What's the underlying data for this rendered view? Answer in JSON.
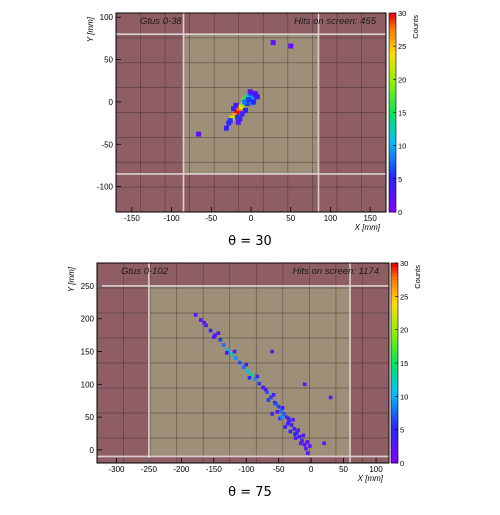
{
  "chart_data": [
    {
      "type": "heatmap",
      "title_left": "Gtus 0-38",
      "title_right": "Hits on screen: 455",
      "xlabel": "X [mm]",
      "ylabel": "Y [mm]",
      "zlabel": "Counts",
      "caption": "θ = 30",
      "xlim": [
        -170,
        170
      ],
      "ylim": [
        -130,
        105
      ],
      "zlim": [
        0,
        30
      ],
      "xticks": [
        -150,
        -100,
        -50,
        0,
        50,
        100,
        150
      ],
      "yticks": [
        -100,
        -50,
        0,
        50,
        100
      ],
      "zticks": [
        0,
        5,
        10,
        15,
        20,
        25,
        30
      ],
      "active_region": {
        "x": [
          -85,
          85
        ],
        "y": [
          -85,
          80
        ]
      },
      "grid": true,
      "points": [
        [
          -18,
          -12,
          30
        ],
        [
          -15,
          -8,
          28
        ],
        [
          -21,
          -16,
          26
        ],
        [
          -12,
          -6,
          24
        ],
        [
          -24,
          -19,
          22
        ],
        [
          -10,
          -3,
          20
        ],
        [
          -9,
          2,
          18
        ],
        [
          -6,
          4,
          16
        ],
        [
          -4,
          6,
          14
        ],
        [
          -2,
          8,
          12
        ],
        [
          1,
          6,
          10
        ],
        [
          4,
          4,
          9
        ],
        [
          2,
          -1,
          8
        ],
        [
          0,
          10,
          7
        ],
        [
          -26,
          -22,
          6
        ],
        [
          -28,
          -25,
          5
        ],
        [
          -31,
          -31,
          4
        ],
        [
          -14,
          -20,
          4
        ],
        [
          -7,
          -10,
          5
        ],
        [
          3,
          0,
          5
        ],
        [
          6,
          8,
          4
        ],
        [
          -1,
          12,
          3
        ],
        [
          8,
          6,
          3
        ],
        [
          -19,
          -4,
          3
        ],
        [
          -16,
          -24,
          3
        ],
        [
          -11,
          -14,
          4
        ],
        [
          -5,
          -2,
          6
        ],
        [
          -66,
          -38,
          2
        ],
        [
          28,
          70,
          2
        ],
        [
          50,
          66,
          2
        ],
        [
          -22,
          -8,
          4
        ],
        [
          -17,
          -18,
          6
        ],
        [
          -8,
          0,
          8
        ],
        [
          -3,
          3,
          6
        ],
        [
          5,
          10,
          3
        ]
      ]
    },
    {
      "type": "heatmap",
      "title_left": "Gtus 0-102",
      "title_right": "Hits on screen: 1174",
      "xlabel": "X [mm]",
      "ylabel": "Y [mm]",
      "zlabel": "Counts",
      "caption": "θ = 75",
      "xlim": [
        -330,
        120
      ],
      "ylim": [
        -20,
        285
      ],
      "zlim": [
        0,
        30
      ],
      "xticks": [
        -300,
        -250,
        -200,
        -150,
        -100,
        -50,
        0,
        50,
        100
      ],
      "yticks": [
        0,
        50,
        100,
        150,
        200,
        250
      ],
      "zticks": [
        0,
        5,
        10,
        15,
        20,
        25,
        30
      ],
      "active_region": {
        "x": [
          -250,
          60
        ],
        "y": [
          -10,
          250
        ]
      },
      "grid": true,
      "points": [
        [
          -170,
          198,
          3
        ],
        [
          -162,
          190,
          4
        ],
        [
          -155,
          182,
          5
        ],
        [
          -148,
          175,
          4
        ],
        [
          -140,
          168,
          6
        ],
        [
          -135,
          160,
          8
        ],
        [
          -128,
          152,
          10
        ],
        [
          -122,
          146,
          12
        ],
        [
          -116,
          140,
          9
        ],
        [
          -110,
          133,
          7
        ],
        [
          -104,
          126,
          8
        ],
        [
          -98,
          120,
          11
        ],
        [
          -92,
          114,
          14
        ],
        [
          -86,
          108,
          9
        ],
        [
          -80,
          101,
          6
        ],
        [
          -74,
          95,
          5
        ],
        [
          -68,
          88,
          7
        ],
        [
          -62,
          80,
          6
        ],
        [
          -56,
          72,
          5
        ],
        [
          -50,
          66,
          6
        ],
        [
          -46,
          60,
          8
        ],
        [
          -42,
          55,
          7
        ],
        [
          -38,
          50,
          6
        ],
        [
          -34,
          44,
          5
        ],
        [
          -30,
          38,
          4
        ],
        [
          -26,
          32,
          5
        ],
        [
          -22,
          26,
          4
        ],
        [
          -18,
          20,
          5
        ],
        [
          -14,
          14,
          4
        ],
        [
          -10,
          8,
          3
        ],
        [
          -165,
          194,
          2
        ],
        [
          -150,
          172,
          3
        ],
        [
          -143,
          178,
          2
        ],
        [
          -130,
          148,
          4
        ],
        [
          -118,
          150,
          3
        ],
        [
          -100,
          130,
          4
        ],
        [
          -95,
          110,
          5
        ],
        [
          -83,
          112,
          4
        ],
        [
          -70,
          92,
          3
        ],
        [
          -58,
          84,
          4
        ],
        [
          -52,
          58,
          3
        ],
        [
          -44,
          64,
          4
        ],
        [
          -36,
          40,
          3
        ],
        [
          -28,
          46,
          2
        ],
        [
          -20,
          30,
          3
        ],
        [
          -12,
          22,
          2
        ],
        [
          -6,
          12,
          2
        ],
        [
          -2,
          6,
          2
        ],
        [
          -60,
          55,
          5
        ],
        [
          -48,
          48,
          6
        ],
        [
          -40,
          35,
          4
        ],
        [
          -32,
          28,
          4
        ],
        [
          -24,
          18,
          3
        ],
        [
          -16,
          10,
          3
        ],
        [
          -178,
          206,
          2
        ],
        [
          -60,
          150,
          2
        ],
        [
          -10,
          100,
          2
        ],
        [
          30,
          80,
          2
        ],
        [
          -5,
          -5,
          2
        ],
        [
          20,
          10,
          3
        ],
        [
          -66,
          76,
          6
        ],
        [
          -54,
          70,
          7
        ],
        [
          -45,
          50,
          9
        ],
        [
          -35,
          48,
          4
        ],
        [
          -25,
          24,
          5
        ],
        [
          -8,
          2,
          3
        ]
      ]
    }
  ]
}
